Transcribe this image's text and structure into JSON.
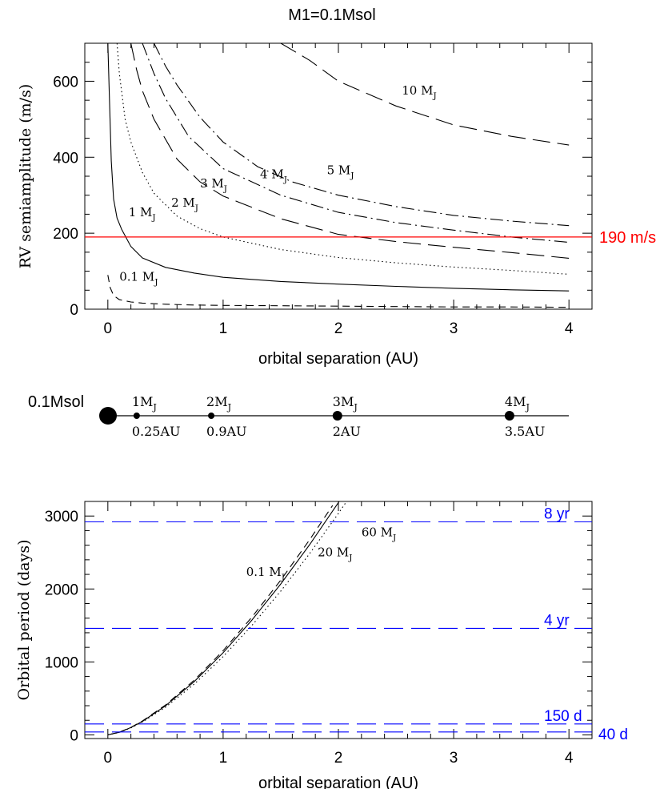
{
  "figure": {
    "title": "M1=0.1Msol"
  },
  "chart_data": [
    {
      "type": "line",
      "title": "M1=0.1Msol",
      "xlabel": "orbital separation (AU)",
      "ylabel": "RV semiamplitude (m/s)",
      "xlim": [
        -0.2,
        4.2
      ],
      "ylim": [
        0,
        700
      ],
      "xticks": [
        "0",
        "1",
        "2",
        "3",
        "4"
      ],
      "yticks": [
        "0",
        "200",
        "400",
        "600"
      ],
      "grid": false,
      "series": [
        {
          "name": "0.1 MJ",
          "dash": "short-dash",
          "x": [
            0.0,
            0.02,
            0.05,
            0.1,
            0.2,
            0.3,
            0.5,
            0.75,
            1.0,
            1.5,
            2.0,
            2.5,
            3.0,
            3.5,
            4.0
          ],
          "y": [
            90,
            57,
            36,
            25,
            19,
            16,
            13,
            11,
            10,
            9,
            8,
            7,
            6,
            6,
            5
          ]
        },
        {
          "name": "1 MJ",
          "dash": "solid",
          "x": [
            0.0,
            0.01,
            0.03,
            0.05,
            0.08,
            0.12,
            0.2,
            0.3,
            0.5,
            0.75,
            1.0,
            1.5,
            2.0,
            2.5,
            3.0,
            3.5,
            4.0
          ],
          "y": [
            700,
            590,
            390,
            290,
            240,
            210,
            165,
            135,
            110,
            95,
            84,
            73,
            66,
            60,
            55,
            51,
            48
          ]
        },
        {
          "name": "2 MJ",
          "dash": "dotted",
          "x": [
            0.08,
            0.1,
            0.15,
            0.2,
            0.3,
            0.4,
            0.6,
            0.8,
            1.0,
            1.5,
            2.0,
            2.5,
            3.0,
            3.5,
            4.0
          ],
          "y": [
            700,
            620,
            500,
            440,
            360,
            305,
            245,
            212,
            190,
            157,
            136,
            122,
            111,
            102,
            92
          ]
        },
        {
          "name": "3 MJ",
          "dash": "long-dash",
          "x": [
            0.2,
            0.25,
            0.3,
            0.4,
            0.6,
            0.8,
            1.0,
            1.5,
            2.0,
            2.5,
            3.0,
            3.5,
            4.0
          ],
          "y": [
            700,
            630,
            575,
            500,
            395,
            335,
            298,
            238,
            197,
            178,
            163,
            149,
            134
          ]
        },
        {
          "name": "4 MJ",
          "dash": "dash-dot",
          "x": [
            0.3,
            0.35,
            0.4,
            0.5,
            0.7,
            1.0,
            1.5,
            2.0,
            2.5,
            3.0,
            3.5,
            4.0
          ],
          "y": [
            700,
            660,
            620,
            555,
            455,
            370,
            300,
            255,
            228,
            208,
            190,
            176
          ]
        },
        {
          "name": "5 MJ",
          "dash": "dash-dot",
          "x": [
            0.4,
            0.5,
            0.6,
            0.8,
            1.0,
            1.3,
            1.6,
            2.0,
            2.5,
            3.0,
            3.5,
            4.0
          ],
          "y": [
            700,
            640,
            590,
            505,
            440,
            375,
            335,
            300,
            270,
            247,
            232,
            220
          ]
        },
        {
          "name": "10 MJ",
          "dash": "long-dash",
          "x": [
            1.5,
            1.75,
            2.0,
            2.5,
            3.0,
            3.5,
            4.0
          ],
          "y": [
            700,
            655,
            600,
            535,
            485,
            455,
            432
          ]
        }
      ],
      "series_labels": [
        {
          "text": "0.1 MJ",
          "x": 0.1,
          "y": 75
        },
        {
          "text": "1 MJ",
          "x": 0.18,
          "y": 245
        },
        {
          "text": "2 MJ",
          "x": 0.55,
          "y": 270
        },
        {
          "text": "3 MJ",
          "x": 0.8,
          "y": 320
        },
        {
          "text": "4 MJ",
          "x": 1.32,
          "y": 345
        },
        {
          "text": "5 MJ",
          "x": 1.9,
          "y": 355
        },
        {
          "text": "10 MJ",
          "x": 2.55,
          "y": 565
        }
      ],
      "annotations": [
        {
          "text": "190 m/s",
          "y": 190,
          "color": "#ff0000"
        }
      ],
      "hline": {
        "y": 190,
        "color": "#ff0000"
      }
    },
    {
      "type": "scatter",
      "title": "",
      "star_label": "0.1Msol",
      "points": [
        {
          "x": 0.0,
          "size": "large",
          "mass": "",
          "sep": ""
        },
        {
          "x": 0.25,
          "size": "small",
          "mass": "1MJ",
          "sep": "0.25AU"
        },
        {
          "x": 0.9,
          "size": "small",
          "mass": "2MJ",
          "sep": "0.9AU"
        },
        {
          "x": 2.0,
          "size": "medium",
          "mass": "3MJ",
          "sep": "2AU"
        },
        {
          "x": 3.5,
          "size": "medium",
          "mass": "4MJ",
          "sep": "3.5AU"
        }
      ]
    },
    {
      "type": "line",
      "title": "",
      "xlabel": "orbital separation (AU)",
      "ylabel": "Orbital period (days)",
      "xlim": [
        -0.2,
        4.2
      ],
      "ylim": [
        -50,
        3200
      ],
      "xticks": [
        "0",
        "1",
        "2",
        "3",
        "4"
      ],
      "yticks": [
        "0",
        "1000",
        "2000",
        "3000"
      ],
      "grid": false,
      "series": [
        {
          "name": "0.1 MJ",
          "dash": "dashed",
          "x": [
            0.0,
            0.1,
            0.2,
            0.3,
            0.5,
            0.75,
            1.0,
            1.25,
            1.5,
            1.75,
            1.95
          ],
          "y": [
            0,
            37,
            103,
            190,
            409,
            751,
            1155,
            1614,
            2122,
            2674,
            3146
          ]
        },
        {
          "name": "20 MJ",
          "dash": "solid",
          "x": [
            0.0,
            0.1,
            0.2,
            0.3,
            0.5,
            0.75,
            1.0,
            1.25,
            1.5,
            1.75,
            2.0,
            2.04
          ],
          "y": [
            0,
            36,
            101,
            185,
            398,
            732,
            1126,
            1574,
            2069,
            2607,
            3185,
            3281
          ]
        },
        {
          "name": "60 MJ",
          "dash": "dotted",
          "x": [
            0.0,
            0.1,
            0.2,
            0.3,
            0.5,
            0.75,
            1.0,
            1.25,
            1.5,
            1.75,
            2.0,
            2.2
          ],
          "y": [
            0,
            34,
            96,
            176,
            379,
            697,
            1073,
            1500,
            1971,
            2484,
            3035,
            3500
          ]
        }
      ],
      "series_labels": [
        {
          "text": "0.1 MJ",
          "x": 1.2,
          "y": 2180
        },
        {
          "text": "20 MJ",
          "x": 1.82,
          "y": 2450
        },
        {
          "text": "60 MJ",
          "x": 2.2,
          "y": 2720
        }
      ],
      "hlines": [
        {
          "y": 2920,
          "label": "8 yr"
        },
        {
          "y": 1460,
          "label": "4 yr"
        },
        {
          "y": 150,
          "label": "150 d"
        },
        {
          "y": 40,
          "label": "40 d"
        }
      ],
      "hline_color": "#0000ff"
    }
  ]
}
